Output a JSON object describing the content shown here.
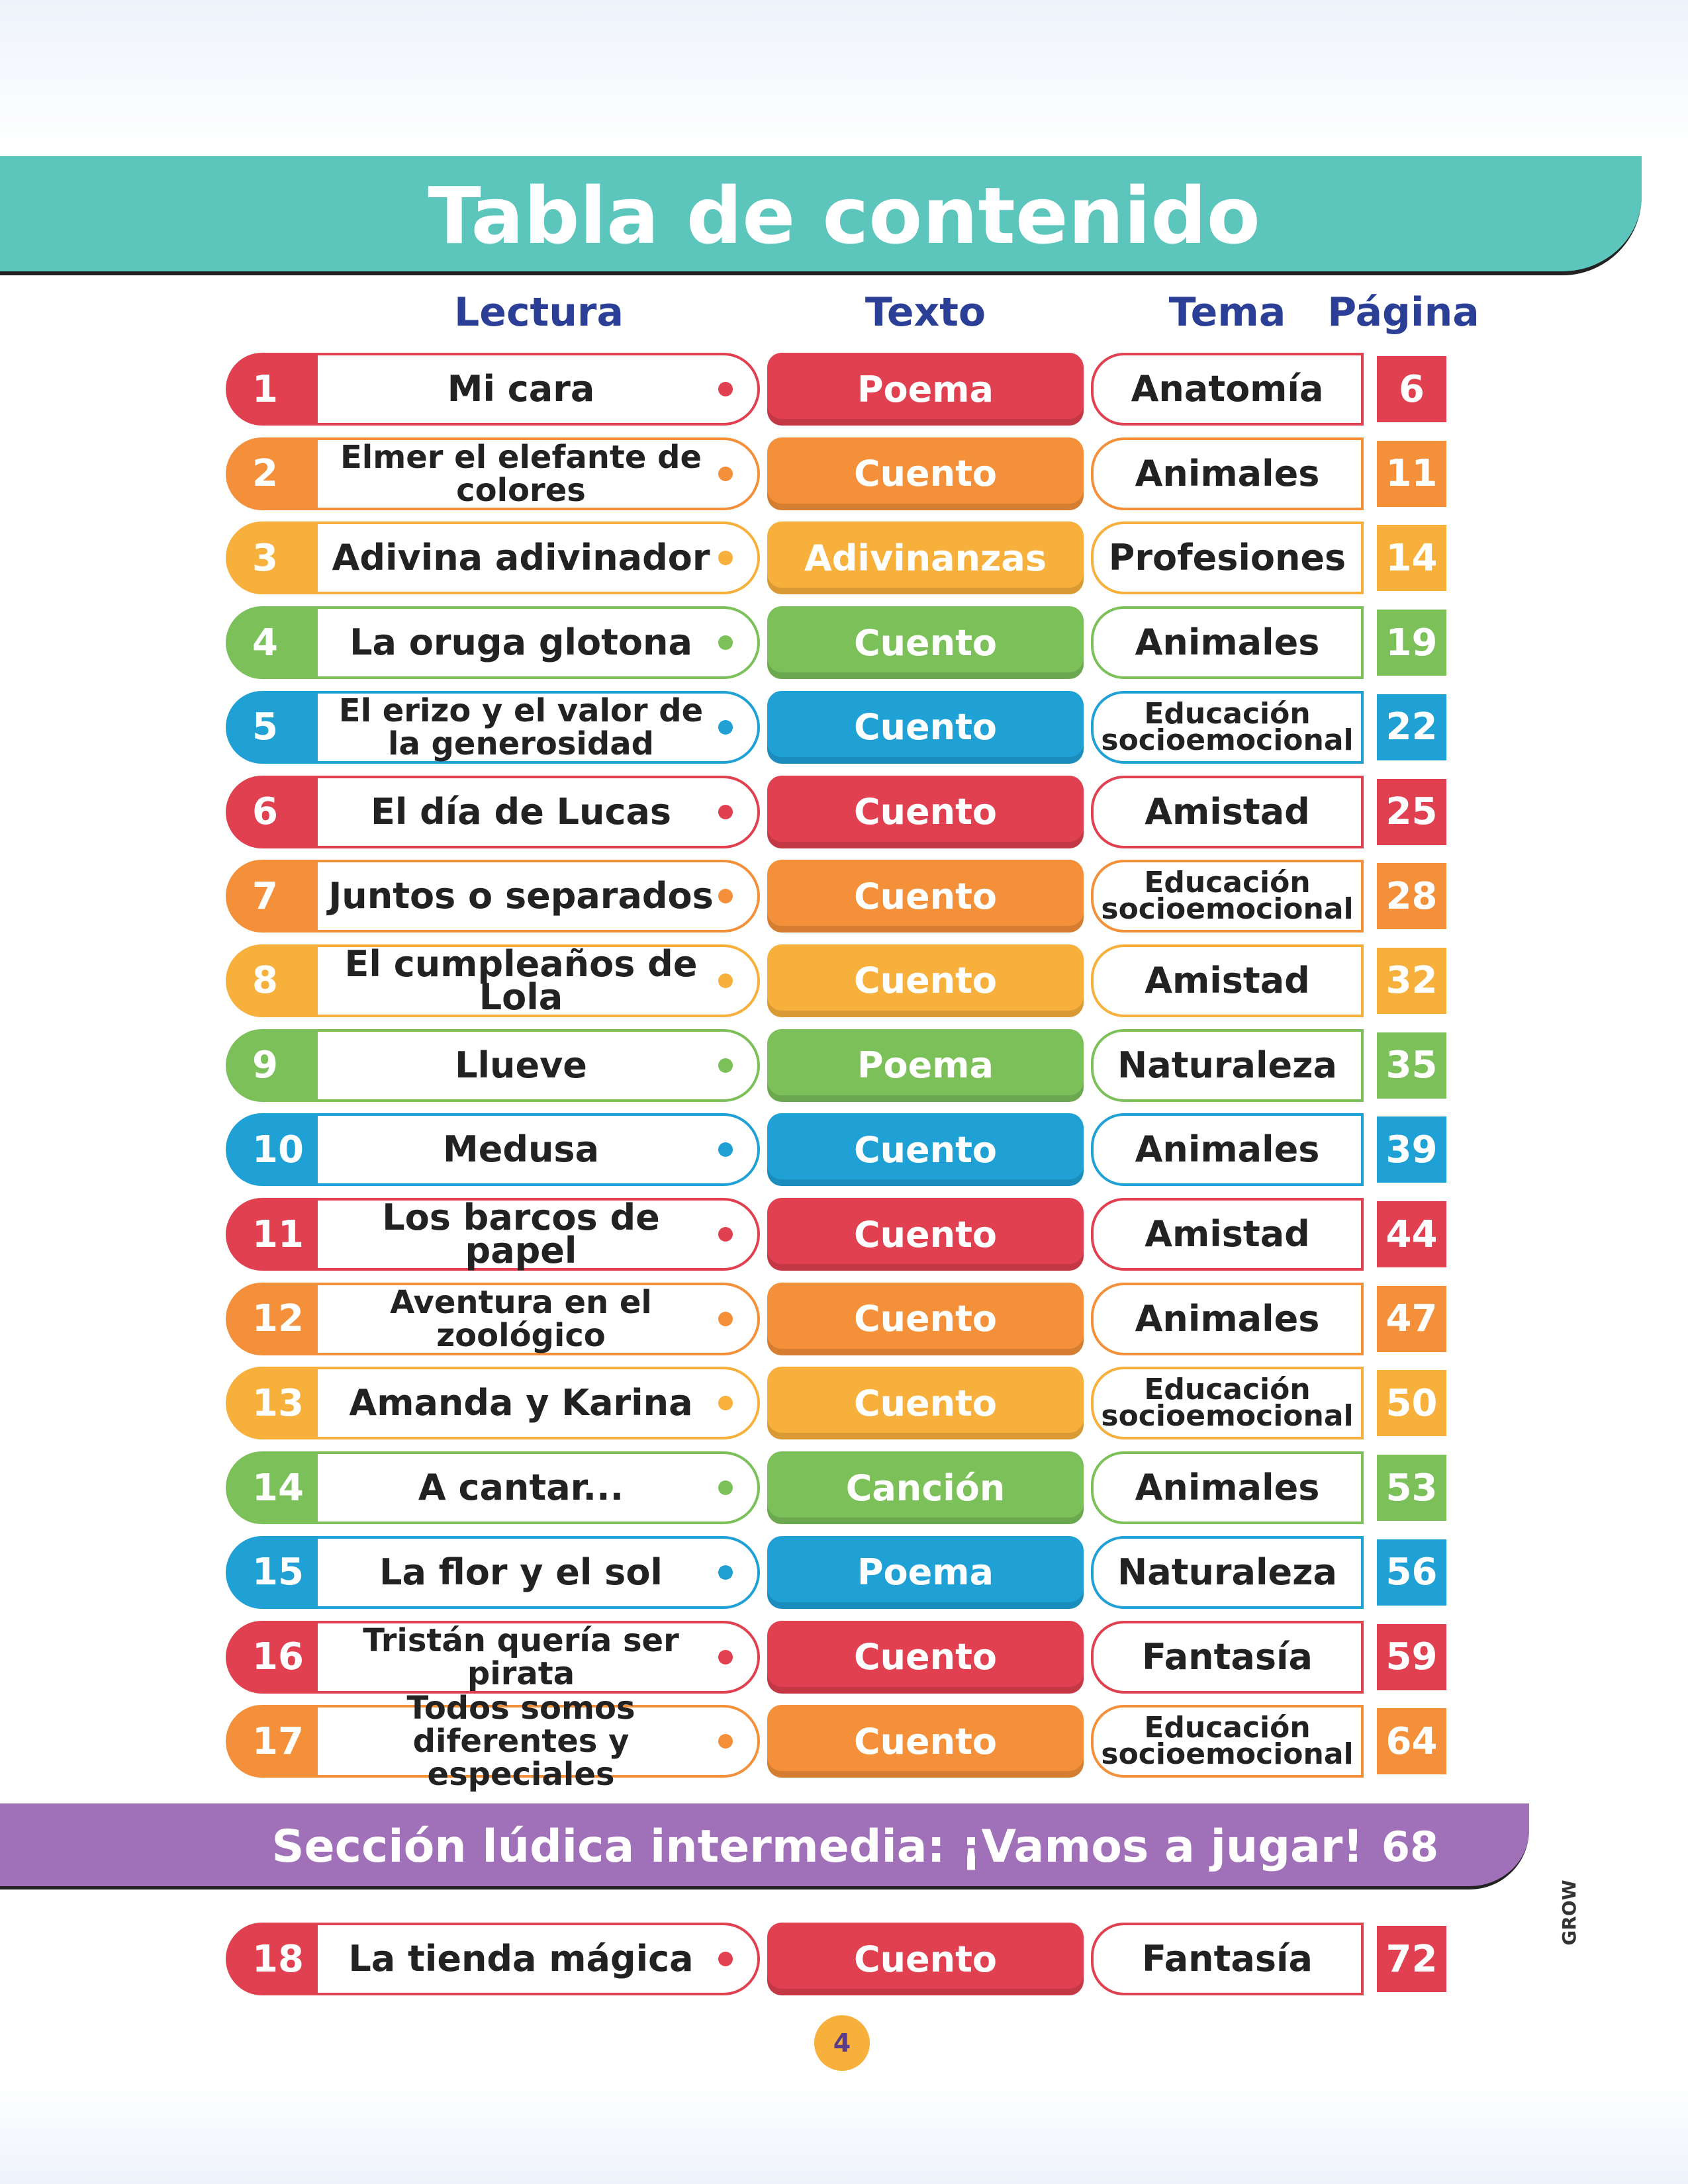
{
  "header": {
    "title": "Tabla de contenido"
  },
  "columns": [
    "Lectura",
    "Texto",
    "Tema",
    "Página"
  ],
  "rows": [
    [
      1,
      "Mi cara",
      "Poema",
      "Anatomía",
      6
    ],
    [
      2,
      "Elmer el elefante de colores",
      "Cuento",
      "Animales",
      11
    ],
    [
      3,
      "Adivina adivinador",
      "Adivinanzas",
      "Profesiones",
      14
    ],
    [
      4,
      "La oruga glotona",
      "Cuento",
      "Animales",
      19
    ],
    [
      5,
      "El erizo y el valor de la generosidad",
      "Cuento",
      "Educación socioemocional",
      22
    ],
    [
      6,
      "El día de Lucas",
      "Cuento",
      "Amistad",
      25
    ],
    [
      7,
      "Juntos o separados",
      "Cuento",
      "Educación socioemocional",
      28
    ],
    [
      8,
      "El cumpleaños de Lola",
      "Cuento",
      "Amistad",
      32
    ],
    [
      9,
      "Llueve",
      "Poema",
      "Naturaleza",
      35
    ],
    [
      10,
      "Medusa",
      "Cuento",
      "Animales",
      39
    ],
    [
      11,
      "Los barcos de papel",
      "Cuento",
      "Amistad",
      44
    ],
    [
      12,
      "Aventura en el zoológico",
      "Cuento",
      "Animales",
      47
    ],
    [
      13,
      "Amanda y Karina",
      "Cuento",
      "Educación socioemocional",
      50
    ],
    [
      14,
      "A cantar...",
      "Canción",
      "Animales",
      53
    ],
    [
      15,
      "La flor y el sol",
      "Poema",
      "Naturaleza",
      56
    ],
    [
      16,
      "Tristán quería ser pirata",
      "Cuento",
      "Fantasía",
      59
    ],
    [
      17,
      "Todos somos diferentes y especiales",
      "Cuento",
      "Educación socioemocional",
      64
    ]
  ],
  "section": {
    "title": "Sección lúdica intermedia: ¡Vamos a jugar!",
    "page": 68
  },
  "rows_after": [
    [
      18,
      "La tienda mágica",
      "Cuento",
      "Fantasía",
      72
    ]
  ],
  "footer": {
    "page": 4,
    "brand": "GROW"
  }
}
